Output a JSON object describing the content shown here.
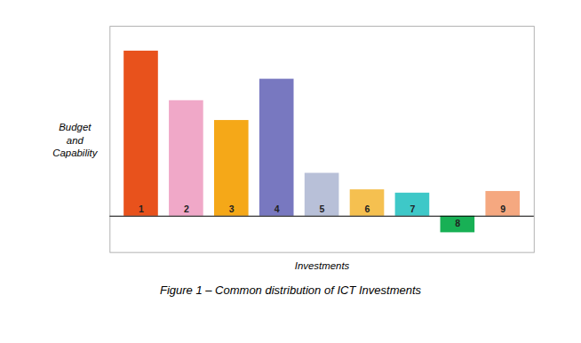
{
  "chart_data": {
    "type": "bar",
    "categories": [
      "1",
      "2",
      "3",
      "4",
      "5",
      "6",
      "7",
      "8",
      "9"
    ],
    "values": [
      10.0,
      7.0,
      5.8,
      8.3,
      2.6,
      1.6,
      1.4,
      -1.0,
      1.5
    ],
    "colors": [
      "#E8521C",
      "#F0A8C8",
      "#F5A818",
      "#7878C0",
      "#B8C0D8",
      "#F5C050",
      "#3EC8C8",
      "#18B055",
      "#F5A880"
    ],
    "xlabel": "Investments",
    "ylabel": "Budget\nand\nCapability",
    "caption": "Figure 1 – Common distribution of ICT Investments",
    "ylim": [
      -2.2,
      11.5
    ],
    "tick_labels": false,
    "grid": false
  }
}
